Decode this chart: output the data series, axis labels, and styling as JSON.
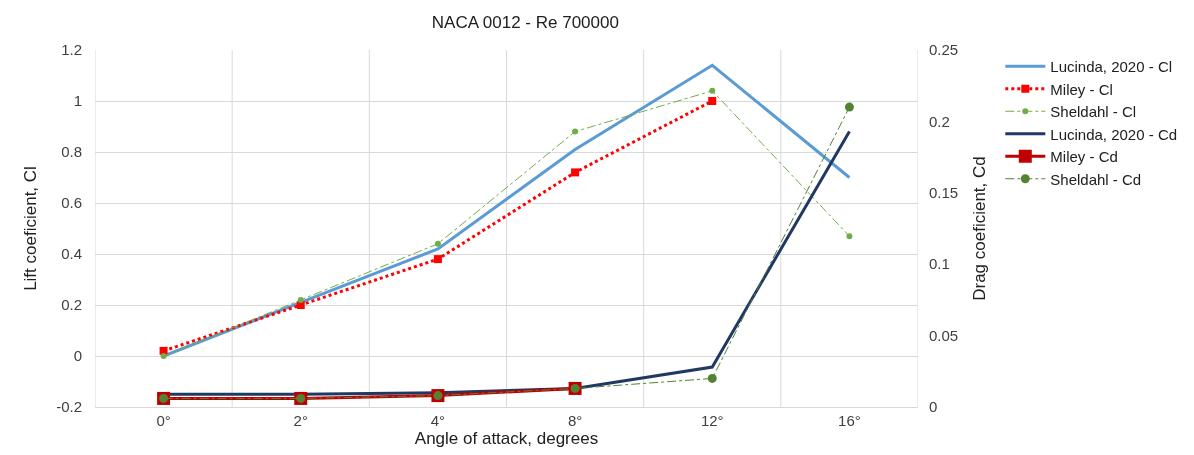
{
  "chart_data": {
    "type": "line",
    "title": "NACA 0012 - Re 700000",
    "xlabel": "Angle of attack, degrees",
    "ylabel": "Lift coeficient, Cl",
    "y2label": "Drag coeficient, Cd",
    "categories": [
      "0°",
      "2°",
      "4°",
      "8°",
      "12°",
      "16°"
    ],
    "series": [
      {
        "name": "Lucinda, 2020 - Cl",
        "color": "#5b9bd5",
        "values": [
          0.0,
          0.21,
          0.42,
          0.81,
          1.14,
          0.7
        ],
        "marker": "none",
        "line_style": "solid"
      },
      {
        "name": "Miley - Cl",
        "color": "#ff0000",
        "values": [
          0.02,
          0.2,
          0.38,
          0.72,
          1.0,
          null
        ],
        "marker": "square",
        "line_style": "dotted"
      },
      {
        "name": "Sheldahl - Cl",
        "color": "#70ad47",
        "values": [
          0.0,
          0.22,
          0.44,
          0.88,
          1.04,
          0.47
        ],
        "marker": "circle",
        "line_style": "dashed"
      },
      {
        "name": "Lucinda, 2020 - Cd",
        "color": "#203864",
        "values": [
          0.009,
          0.009,
          0.01,
          0.013,
          0.028,
          0.193
        ],
        "marker": "none",
        "line_style": "solid",
        "axis": "y2"
      },
      {
        "name": "Miley - Cd",
        "color": "#c00000",
        "values": [
          0.006,
          0.006,
          0.008,
          0.013,
          null,
          null
        ],
        "marker": "square",
        "line_style": "solid",
        "axis": "y2"
      },
      {
        "name": "Sheldahl - Cd",
        "color": "#548235",
        "values": [
          0.006,
          0.006,
          0.008,
          0.013,
          0.02,
          0.21
        ],
        "marker": "circle",
        "line_style": "dashed",
        "axis": "y2"
      }
    ],
    "ylim": [
      -0.2,
      1.2
    ],
    "yticks": [
      -0.2,
      0,
      0.2,
      0.4,
      0.6,
      0.8,
      1,
      1.2
    ],
    "y2lim": [
      0,
      0.25
    ],
    "y2ticks": [
      0,
      0.05,
      0.1,
      0.15,
      0.2,
      0.25
    ],
    "grid": true,
    "legend": "right"
  }
}
